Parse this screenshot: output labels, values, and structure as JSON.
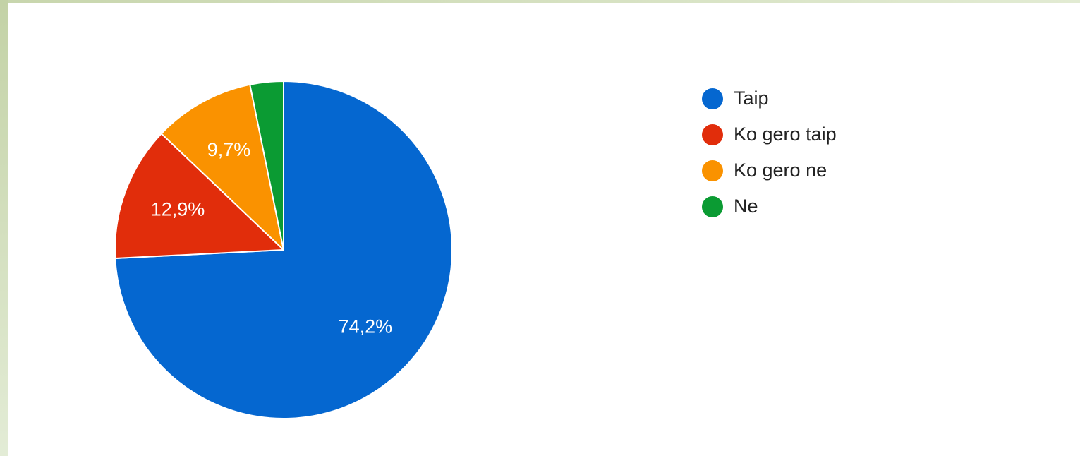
{
  "chart_data": {
    "type": "pie",
    "start_angle_deg": 0,
    "direction": "clockwise",
    "legend_position": "right",
    "slices": [
      {
        "label": "Taip",
        "value": 74.2,
        "color": "#0567d0",
        "display": "74,2%"
      },
      {
        "label": "Ko gero taip",
        "value": 12.9,
        "color": "#e12d0b",
        "display": "12,9%"
      },
      {
        "label": "Ko gero ne",
        "value": 9.7,
        "color": "#fa9200",
        "display": "9,7%"
      },
      {
        "label": "Ne",
        "value": 3.2,
        "color": "#0b9b33",
        "display": ""
      }
    ]
  }
}
